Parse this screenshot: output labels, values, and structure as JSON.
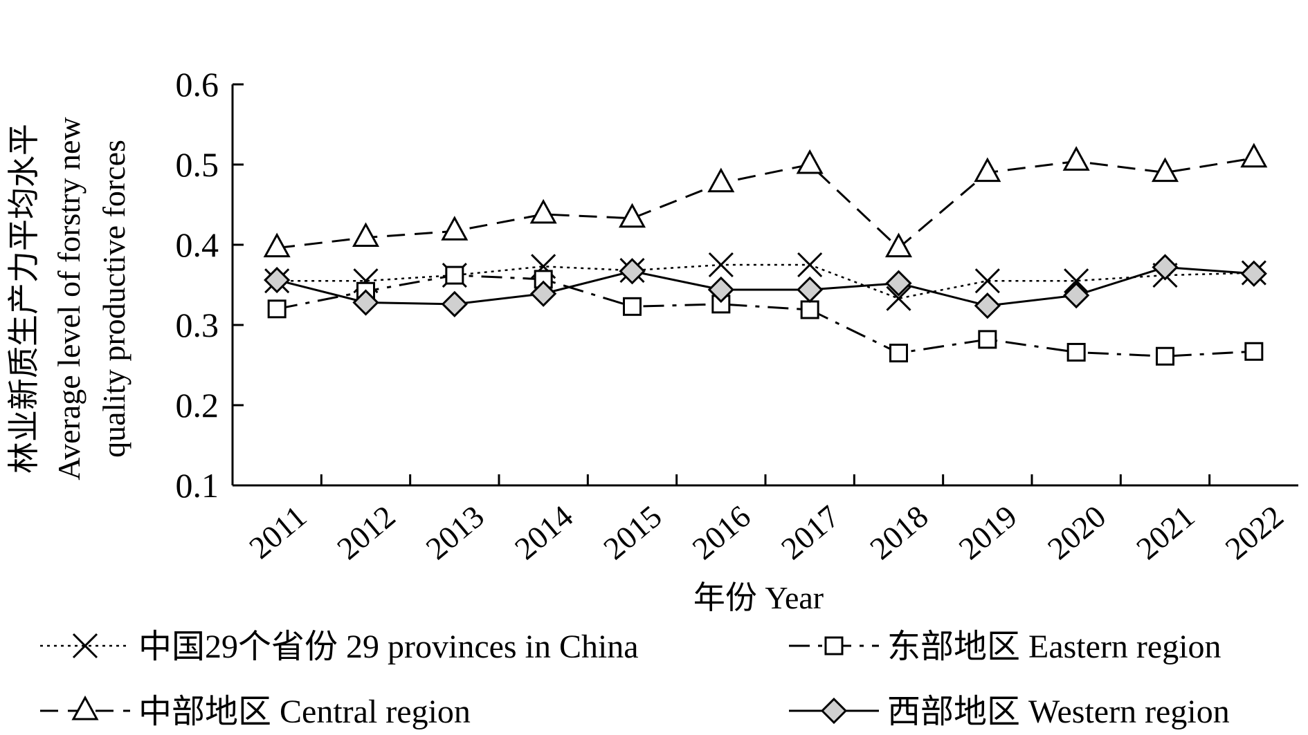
{
  "chart_data": {
    "type": "line",
    "x": [
      "2011",
      "2012",
      "2013",
      "2014",
      "2015",
      "2016",
      "2017",
      "2018",
      "2019",
      "2020",
      "2021",
      "2022"
    ],
    "ylim": [
      0.1,
      0.6
    ],
    "yticks": [
      "0.1",
      "0.2",
      "0.3",
      "0.4",
      "0.5",
      "0.6"
    ],
    "xlabel": "年份 Year",
    "ylabel": [
      "林业新质生产力平均水平",
      "Average level of forstry new",
      "quality productive forces"
    ],
    "grid": false,
    "legend_position": "bottom",
    "series": [
      {
        "name": "中国29个省份 29 provinces  in China",
        "marker": "x",
        "dash": "dotted",
        "values": [
          0.355,
          0.355,
          0.362,
          0.373,
          0.368,
          0.375,
          0.375,
          0.333,
          0.355,
          0.355,
          0.362,
          0.365
        ]
      },
      {
        "name": "东部地区 Eastern region",
        "marker": "square",
        "dash": "dashdot",
        "values": [
          0.32,
          0.342,
          0.362,
          0.357,
          0.323,
          0.326,
          0.319,
          0.265,
          0.282,
          0.266,
          0.261,
          0.267
        ]
      },
      {
        "name": "中部地区 Central region",
        "marker": "triangle",
        "dash": "dashed",
        "values": [
          0.396,
          0.409,
          0.417,
          0.438,
          0.433,
          0.477,
          0.5,
          0.396,
          0.49,
          0.504,
          0.49,
          0.508
        ]
      },
      {
        "name": "西部地区 Western region",
        "marker": "diamond",
        "dash": "solid",
        "values": [
          0.356,
          0.328,
          0.326,
          0.339,
          0.367,
          0.344,
          0.344,
          0.352,
          0.324,
          0.337,
          0.372,
          0.364
        ]
      }
    ]
  }
}
